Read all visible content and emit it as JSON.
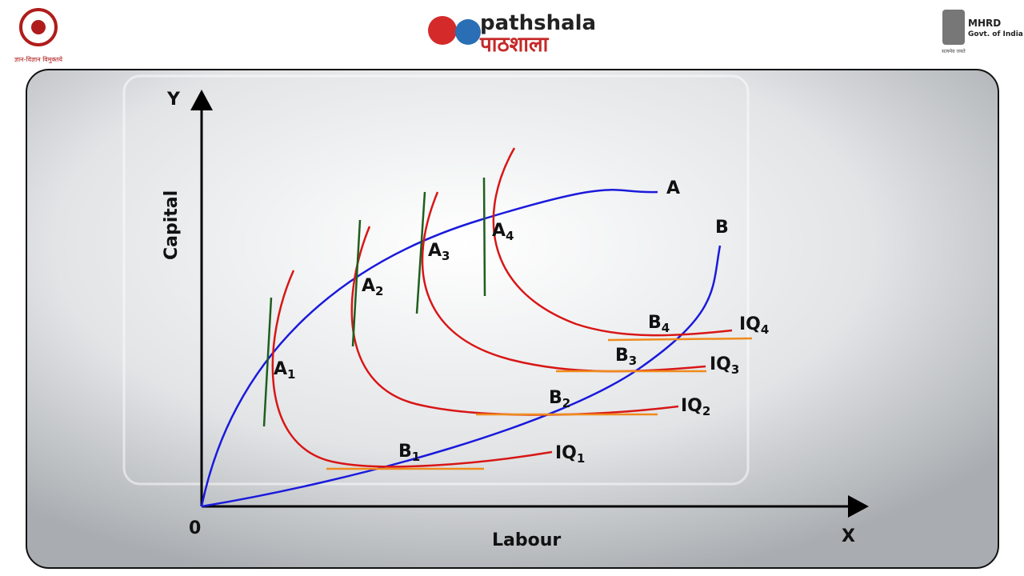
{
  "header": {
    "left_logo_caption": "ज्ञान-विज्ञान विमुक्तये",
    "center_logo_english": "pathshala",
    "center_logo_hindi": "पाठशाला",
    "right_logo_title": "MHRD",
    "right_logo_subtitle": "Govt. of India",
    "right_logo_motto": "सत्यमेव जयते"
  },
  "diagram": {
    "y_axis_letter": "Y",
    "y_axis_label": "Capital",
    "x_axis_letter": "X",
    "x_axis_label": "Labour",
    "origin": "0",
    "curve_labels": [
      "A",
      "B"
    ],
    "points": [
      {
        "letter": "A",
        "sub": "1"
      },
      {
        "letter": "A",
        "sub": "2"
      },
      {
        "letter": "A",
        "sub": "3"
      },
      {
        "letter": "A",
        "sub": "4"
      },
      {
        "letter": "B",
        "sub": "1"
      },
      {
        "letter": "B",
        "sub": "2"
      },
      {
        "letter": "B",
        "sub": "3"
      },
      {
        "letter": "B",
        "sub": "4"
      }
    ],
    "isoquants": [
      {
        "letter": "IQ",
        "sub": "1"
      },
      {
        "letter": "IQ",
        "sub": "2"
      },
      {
        "letter": "IQ",
        "sub": "3"
      },
      {
        "letter": "IQ",
        "sub": "4"
      }
    ]
  }
}
